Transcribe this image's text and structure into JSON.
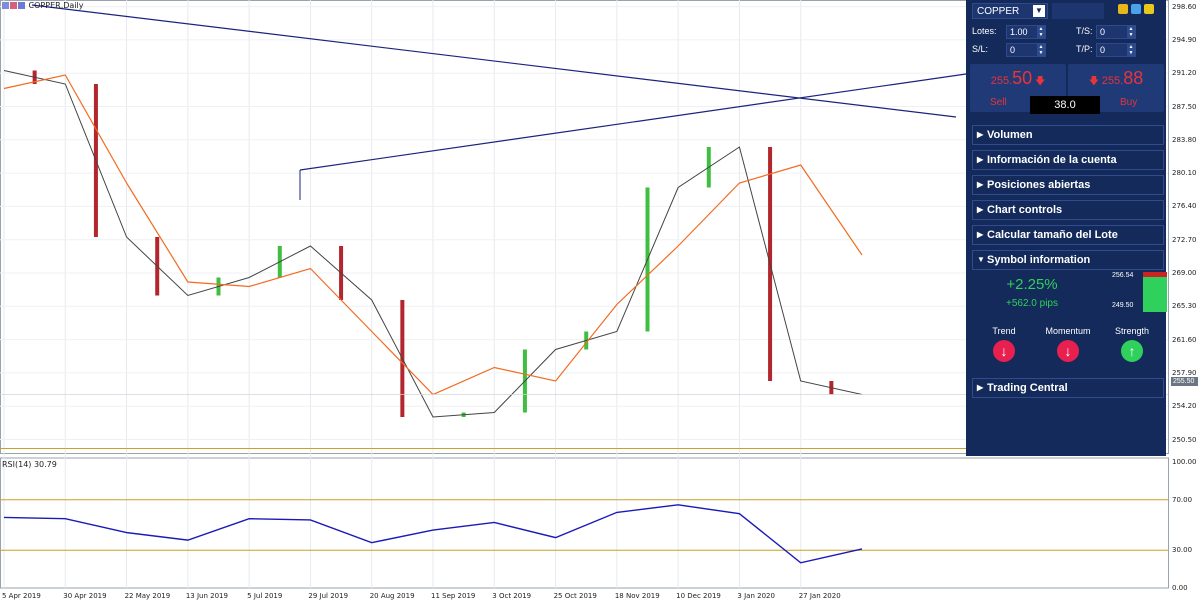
{
  "chart_title": "COPPER,Daily",
  "rsi_label": "RSI(14) 30.79",
  "panel": {
    "symbol": "COPPER",
    "lots_label": "Lotes:",
    "lots_value": "1.00",
    "ts_label": "T/S:",
    "ts_value": "0",
    "sl_label": "S/L:",
    "sl_value": "0",
    "tp_label": "T/P:",
    "tp_value": "0",
    "sell_small": "255.",
    "sell_big": "50",
    "sell_label": "Sell",
    "buy_small": "255.",
    "buy_big": "88",
    "buy_label": "Buy",
    "spread": "38.0",
    "sections": [
      "Volumen",
      "Información de la cuenta",
      "Posiciones abiertas",
      "Chart controls",
      "Calcular tamaño del Lote"
    ],
    "symbol_info_label": "Symbol information",
    "change_pct": "+2.25%",
    "change_pips": "+562.0 pips",
    "range_high": "256.54",
    "range_low": "249.50",
    "trend_label": "Trend",
    "momentum_label": "Momentum",
    "strength_label": "Strength",
    "trend_dir": "down",
    "momentum_dir": "down",
    "strength_dir": "up",
    "trading_central": "Trading Central",
    "colors": {
      "panel_bg": "#132a5a",
      "sell": "#e8343a",
      "up": "#2fd05b",
      "down": "#e8204f"
    }
  },
  "price_axis": [
    "298.60",
    "294.90",
    "291.20",
    "287.50",
    "283.80",
    "280.10",
    "276.40",
    "272.70",
    "269.00",
    "265.30",
    "261.60",
    "257.90",
    "254.20",
    "250.50"
  ],
  "rsi_axis": [
    "100.00",
    "70.00",
    "30.00",
    "0.00"
  ],
  "current_price": "255.50",
  "x_axis": [
    "5 Apr 2019",
    "30 Apr 2019",
    "22 May 2019",
    "13 Jun 2019",
    "5 Jul 2019",
    "29 Jul 2019",
    "20 Aug 2019",
    "11 Sep 2019",
    "3 Oct 2019",
    "25 Oct 2019",
    "18 Nov 2019",
    "10 Dec 2019",
    "3 Jan 2020",
    "27 Jan 2020"
  ],
  "chart_data": {
    "type": "line",
    "title": "COPPER,Daily",
    "xlabel": "",
    "ylabel": "",
    "ylim": [
      249.0,
      299.0
    ],
    "x": [
      "5 Apr 2019",
      "30 Apr 2019",
      "22 May 2019",
      "13 Jun 2019",
      "5 Jul 2019",
      "29 Jul 2019",
      "20 Aug 2019",
      "11 Sep 2019",
      "3 Oct 2019",
      "25 Oct 2019",
      "18 Nov 2019",
      "10 Dec 2019",
      "3 Jan 2020",
      "27 Jan 2020",
      "30 Jan 2020"
    ],
    "series": [
      {
        "values": [
          291.5,
          290.0,
          273.0,
          266.5,
          268.5,
          272.0,
          266.0,
          253.0,
          253.5,
          260.5,
          262.5,
          278.5,
          283.0,
          257.0,
          255.5
        ]
      },
      {
        "values": [
          289.5,
          291.0,
          279.0,
          268.0,
          267.5,
          269.5,
          262.5,
          255.5,
          258.5,
          257.0,
          265.5,
          272.0,
          279.0,
          281.0,
          271.0
        ]
      }
    ],
    "rsi": {
      "ylim": [
        0,
        100
      ],
      "levels": [
        70,
        30
      ],
      "values": [
        56,
        55,
        44,
        38,
        55,
        54,
        36,
        46,
        52,
        40,
        60,
        66,
        59,
        20,
        31
      ]
    }
  }
}
